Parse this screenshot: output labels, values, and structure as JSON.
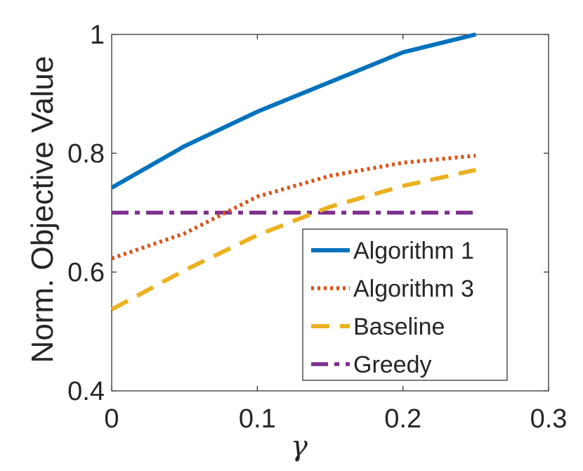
{
  "chart_data": {
    "type": "line",
    "title": "",
    "xlabel": "γ",
    "ylabel": "Norm. Objective Value",
    "xlim": [
      0,
      0.3
    ],
    "ylim": [
      0.4,
      1.0
    ],
    "xticks": [
      0,
      0.1,
      0.2,
      0.3
    ],
    "xtick_labels": [
      "0",
      "0.1",
      "0.2",
      "0.3"
    ],
    "yticks": [
      0.4,
      0.6,
      0.8,
      1.0
    ],
    "ytick_labels": [
      "0.4",
      "0.6",
      "0.8",
      "1"
    ],
    "grid": false,
    "legend_position": "bottom-right",
    "x": [
      0,
      0.05,
      0.1,
      0.15,
      0.2,
      0.25
    ],
    "series": [
      {
        "name": "Algorithm 1",
        "color": "#0072BD",
        "style": "solid",
        "values": [
          0.742,
          0.812,
          0.87,
          0.92,
          0.97,
          1.0
        ]
      },
      {
        "name": "Algorithm 3",
        "color": "#D95319",
        "style": "dotted",
        "values": [
          0.623,
          0.665,
          0.727,
          0.762,
          0.784,
          0.796
        ]
      },
      {
        "name": "Baseline",
        "color": "#EDB120",
        "style": "dashed",
        "values": [
          0.537,
          0.603,
          0.662,
          0.71,
          0.745,
          0.772
        ]
      },
      {
        "name": "Greedy",
        "color": "#7E2F8E",
        "style": "dashdot",
        "values": [
          0.7,
          0.7,
          0.7,
          0.7,
          0.7,
          0.7
        ]
      }
    ]
  }
}
